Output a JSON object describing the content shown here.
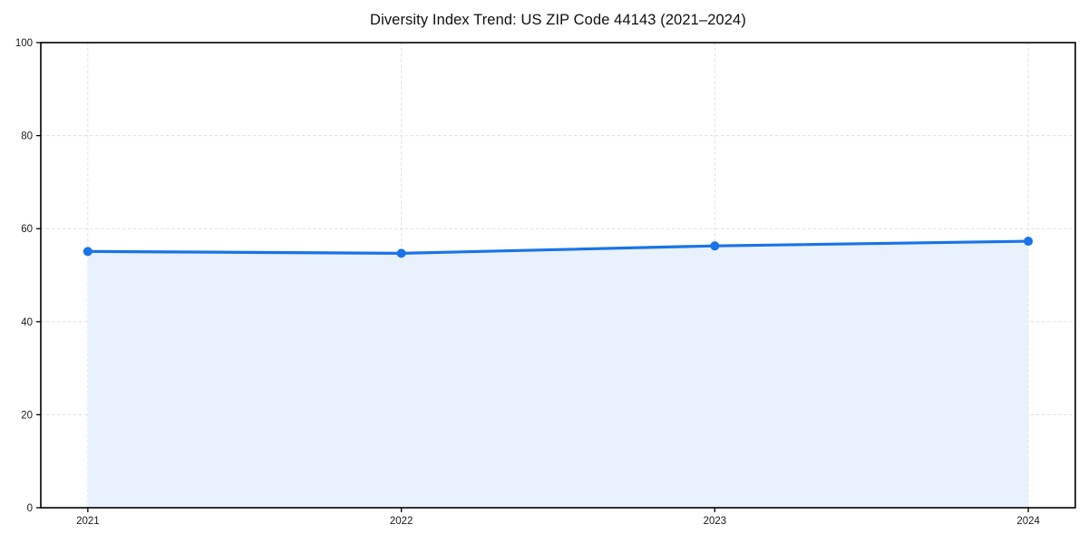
{
  "chart_data": {
    "type": "area",
    "title": "Diversity Index Trend: US ZIP Code 44143 (2021–2024)",
    "xlabel": "",
    "ylabel": "",
    "x": [
      2021,
      2022,
      2023,
      2024
    ],
    "xticks": [
      "2021",
      "2022",
      "2023",
      "2024"
    ],
    "yticks": [
      0,
      20,
      40,
      60,
      80,
      100
    ],
    "ylim": [
      0,
      100
    ],
    "series": [
      {
        "name": "Diversity Index",
        "values": [
          55.1,
          54.7,
          56.3,
          57.3
        ]
      }
    ],
    "grid": true,
    "grid_style": "dashed",
    "legend": false,
    "legend_position": "none",
    "colors": {
      "line": "#1a73e8",
      "marker": "#1a73e8",
      "fill": "#e8f1fc",
      "grid": "#e0e0e0",
      "spine": "#000000",
      "tick_label": "#1a1a1a",
      "title": "#0f0f0f",
      "background": "#ffffff"
    }
  }
}
